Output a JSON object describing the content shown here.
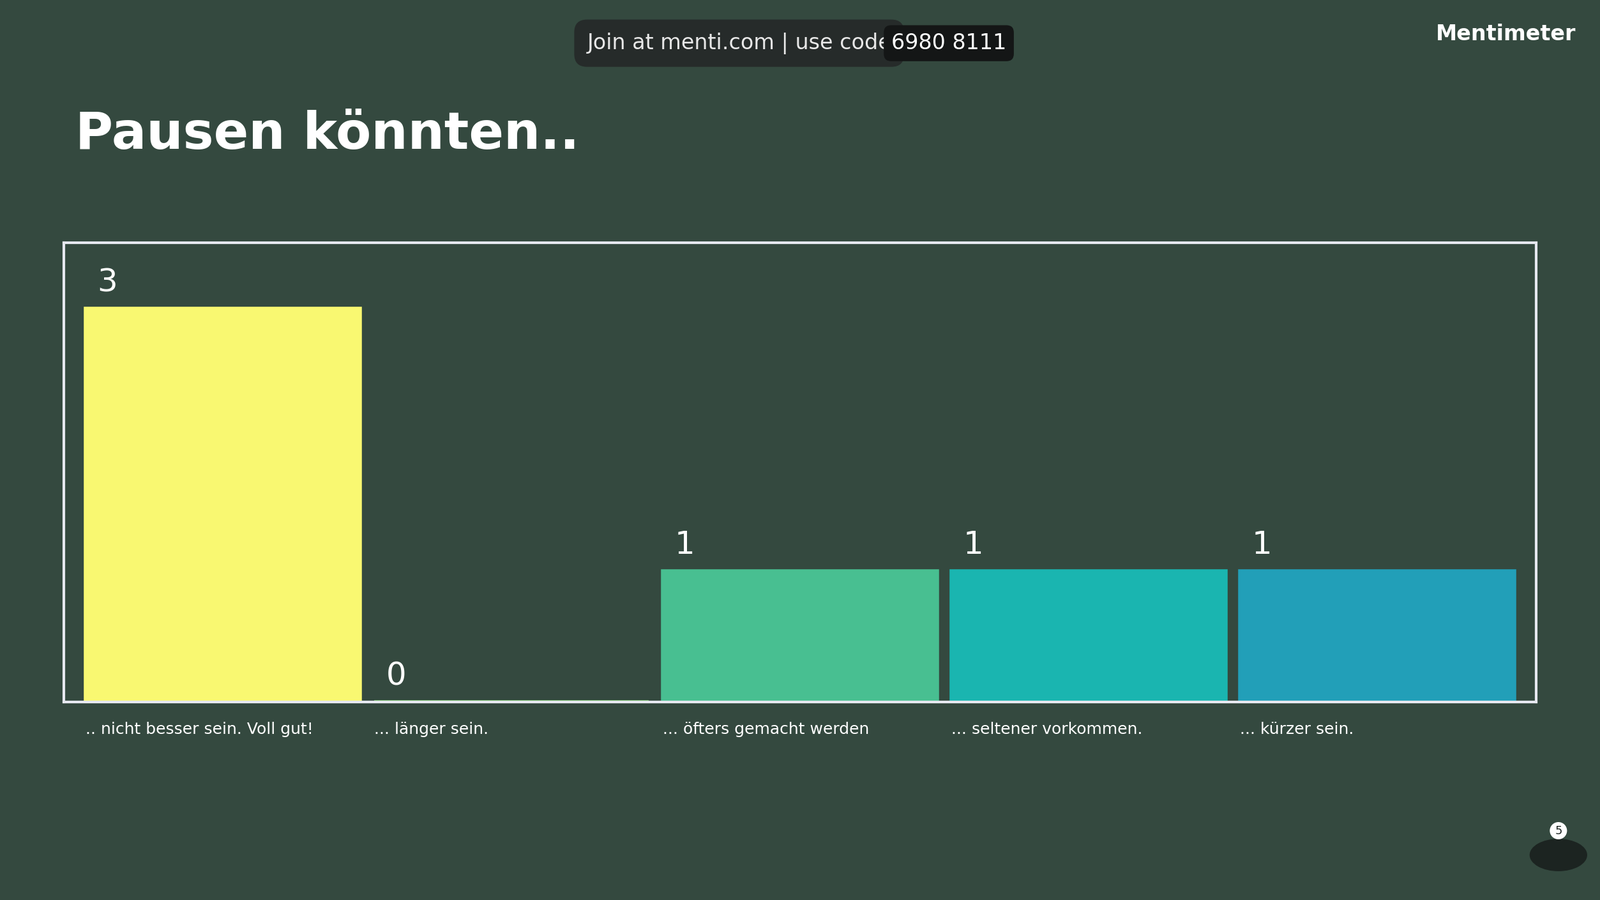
{
  "chart_data": {
    "type": "bar",
    "title": "Pausen könnten..",
    "categories": [
      ".. nicht besser sein. Voll gut!",
      "... länger sein.",
      "... öfters gemacht werden",
      "... seltener vorkommen.",
      "... kürzer sein."
    ],
    "values": [
      3,
      0,
      1,
      1,
      1
    ],
    "colors": [
      "#f9f871",
      "#7ed66b",
      "#48bf91",
      "#1ab5b0",
      "#229fb8"
    ],
    "ylim": [
      0,
      3.5
    ],
    "data_labels": true,
    "tick_labels": "x",
    "grid": false,
    "annotations": [
      "Join at menti.com | use code",
      "6980 8111",
      "Mentimeter"
    ],
    "participants": 5
  }
}
